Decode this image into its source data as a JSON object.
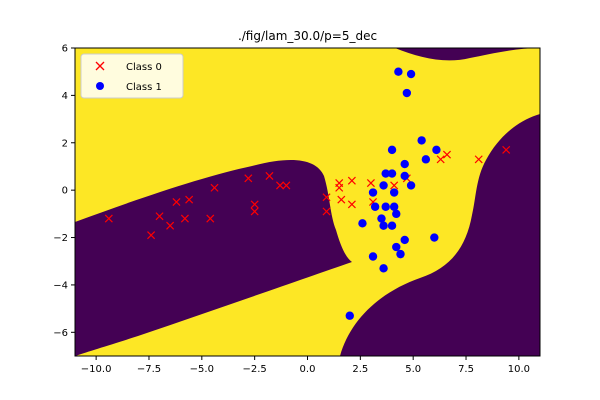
{
  "chart_data": {
    "type": "scatter",
    "title": "./fig/lam_30.0/p=5_dec",
    "xlabel": "",
    "ylabel": "",
    "xlim": [
      -11,
      11
    ],
    "ylim": [
      -7,
      6
    ],
    "xticks": [
      -10.0,
      -7.5,
      -5.0,
      -2.5,
      0.0,
      2.5,
      5.0,
      7.5,
      10.0
    ],
    "xtick_labels": [
      "−10.0",
      "−7.5",
      "−5.0",
      "−2.5",
      "0.0",
      "2.5",
      "5.0",
      "7.5",
      "10.0"
    ],
    "yticks": [
      -6,
      -4,
      -2,
      0,
      2,
      4,
      6
    ],
    "ytick_labels": [
      "−6",
      "−4",
      "−2",
      "0",
      "2",
      "4",
      "6"
    ],
    "grid": false,
    "legend_position": "top-left",
    "background": {
      "description_colors": {
        "class_0_region": "#440154",
        "class_1_region": "#fde725"
      }
    },
    "series": [
      {
        "name": "Class 0",
        "marker": "x",
        "color": "#ff0000",
        "points": [
          [
            -9.4,
            -1.2
          ],
          [
            -7.4,
            -1.9
          ],
          [
            -7.0,
            -1.1
          ],
          [
            -6.5,
            -1.5
          ],
          [
            -6.2,
            -0.5
          ],
          [
            -5.8,
            -1.2
          ],
          [
            -5.6,
            -0.4
          ],
          [
            -4.6,
            -1.2
          ],
          [
            -4.4,
            0.1
          ],
          [
            -2.8,
            0.5
          ],
          [
            -2.5,
            -0.6
          ],
          [
            -2.5,
            -0.9
          ],
          [
            -1.8,
            0.6
          ],
          [
            -1.3,
            0.2
          ],
          [
            -1.0,
            0.2
          ],
          [
            0.9,
            -0.3
          ],
          [
            0.9,
            -0.9
          ],
          [
            1.5,
            0.3
          ],
          [
            1.5,
            0.1
          ],
          [
            1.6,
            -0.4
          ],
          [
            2.1,
            0.4
          ],
          [
            2.1,
            -0.6
          ],
          [
            3.0,
            0.3
          ],
          [
            3.1,
            -0.5
          ],
          [
            4.1,
            0.2
          ],
          [
            4.7,
            0.5
          ],
          [
            6.3,
            1.3
          ],
          [
            6.6,
            1.5
          ],
          [
            8.1,
            1.3
          ],
          [
            9.4,
            1.7
          ]
        ]
      },
      {
        "name": "Class 1",
        "marker": "o",
        "color": "#0000ff",
        "points": [
          [
            4.3,
            5.0
          ],
          [
            4.9,
            4.9
          ],
          [
            4.7,
            4.1
          ],
          [
            5.4,
            2.1
          ],
          [
            5.6,
            1.3
          ],
          [
            6.1,
            1.7
          ],
          [
            4.0,
            1.7
          ],
          [
            4.6,
            1.1
          ],
          [
            4.6,
            0.6
          ],
          [
            4.9,
            0.2
          ],
          [
            3.7,
            0.7
          ],
          [
            4.0,
            0.7
          ],
          [
            3.6,
            0.2
          ],
          [
            4.1,
            -0.1
          ],
          [
            3.1,
            -0.1
          ],
          [
            3.2,
            -0.7
          ],
          [
            3.7,
            -0.7
          ],
          [
            4.1,
            -0.7
          ],
          [
            4.2,
            -1.0
          ],
          [
            3.5,
            -1.2
          ],
          [
            3.6,
            -1.5
          ],
          [
            4.0,
            -1.5
          ],
          [
            2.6,
            -1.4
          ],
          [
            4.6,
            -2.1
          ],
          [
            4.2,
            -2.4
          ],
          [
            4.4,
            -2.7
          ],
          [
            3.1,
            -2.8
          ],
          [
            3.6,
            -3.3
          ],
          [
            6.0,
            -2.0
          ],
          [
            2.0,
            -5.3
          ]
        ]
      }
    ]
  }
}
